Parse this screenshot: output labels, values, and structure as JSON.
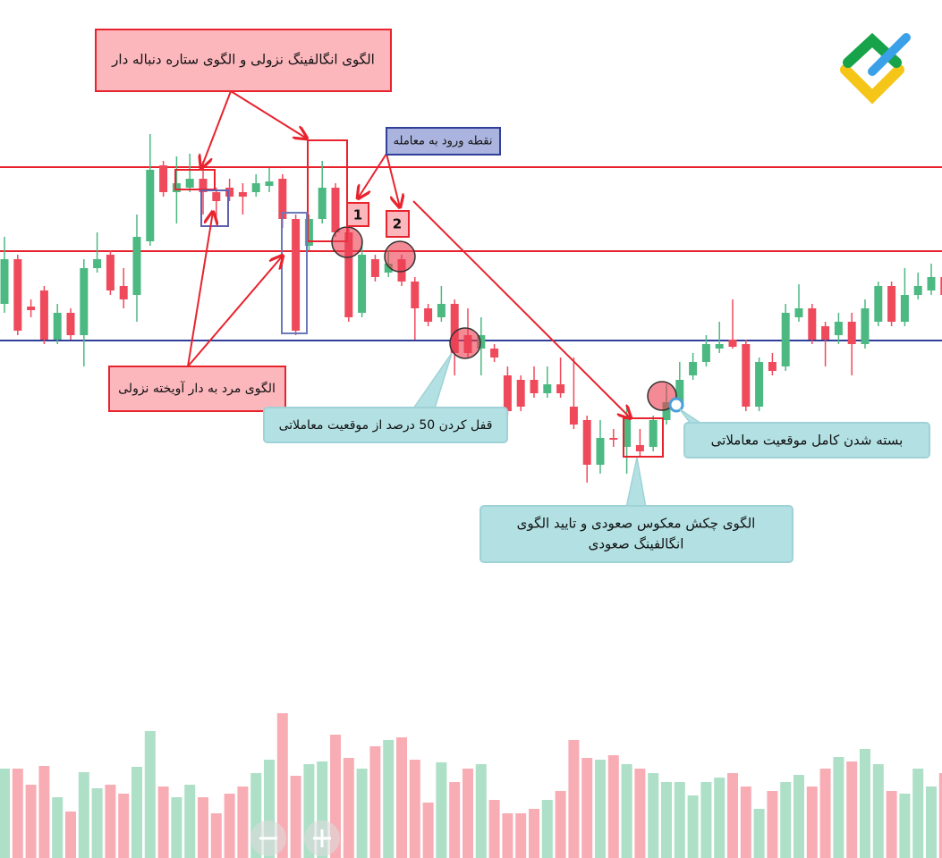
{
  "chart_data": {
    "type": "candlestick",
    "ylim": [
      0,
      410
    ],
    "up_color": "#4cb882",
    "down_color": "#ef4a5c",
    "candles": [
      [
        210,
        285,
        200,
        260
      ],
      [
        260,
        265,
        175,
        180
      ],
      [
        207,
        215,
        195,
        203
      ],
      [
        225,
        230,
        165,
        170
      ],
      [
        170,
        210,
        165,
        200
      ],
      [
        200,
        205,
        170,
        175
      ],
      [
        175,
        260,
        140,
        250
      ],
      [
        250,
        290,
        245,
        260
      ],
      [
        265,
        270,
        220,
        225
      ],
      [
        230,
        250,
        205,
        215
      ],
      [
        220,
        310,
        190,
        285
      ],
      [
        280,
        400,
        275,
        360
      ],
      [
        365,
        370,
        330,
        335
      ],
      [
        335,
        375,
        300,
        345
      ],
      [
        340,
        378,
        335,
        350
      ],
      [
        350,
        370,
        310,
        335
      ],
      [
        335,
        340,
        305,
        325
      ],
      [
        340,
        350,
        325,
        330
      ],
      [
        335,
        345,
        310,
        330
      ],
      [
        335,
        355,
        330,
        345
      ],
      [
        342,
        362,
        335,
        347
      ],
      [
        350,
        355,
        295,
        305
      ],
      [
        305,
        310,
        175,
        180
      ],
      [
        275,
        310,
        270,
        305
      ],
      [
        305,
        370,
        300,
        340
      ],
      [
        340,
        345,
        285,
        290
      ],
      [
        290,
        310,
        190,
        195
      ],
      [
        200,
        280,
        195,
        265
      ],
      [
        260,
        265,
        235,
        240
      ],
      [
        245,
        270,
        240,
        255
      ],
      [
        260,
        265,
        230,
        235
      ],
      [
        235,
        240,
        170,
        205
      ],
      [
        205,
        210,
        185,
        190
      ],
      [
        195,
        230,
        190,
        210
      ],
      [
        210,
        215,
        130,
        155
      ],
      [
        175,
        205,
        150,
        155
      ],
      [
        160,
        195,
        130,
        175
      ],
      [
        160,
        165,
        145,
        150
      ],
      [
        130,
        140,
        85,
        90
      ],
      [
        125,
        130,
        90,
        95
      ],
      [
        125,
        140,
        105,
        110
      ],
      [
        110,
        140,
        105,
        120
      ],
      [
        120,
        150,
        105,
        110
      ],
      [
        95,
        150,
        70,
        75
      ],
      [
        80,
        85,
        10,
        30
      ],
      [
        30,
        80,
        20,
        60
      ],
      [
        60,
        70,
        50,
        58
      ],
      [
        50,
        95,
        20,
        85
      ],
      [
        52,
        70,
        40,
        45
      ],
      [
        50,
        85,
        45,
        80
      ],
      [
        80,
        120,
        75,
        100
      ],
      [
        95,
        145,
        90,
        125
      ],
      [
        130,
        155,
        125,
        145
      ],
      [
        145,
        175,
        140,
        165
      ],
      [
        160,
        190,
        155,
        165
      ],
      [
        170,
        215,
        160,
        162
      ],
      [
        165,
        170,
        90,
        95
      ],
      [
        95,
        150,
        90,
        145
      ],
      [
        145,
        155,
        130,
        135
      ],
      [
        140,
        210,
        135,
        200
      ],
      [
        195,
        232,
        190,
        205
      ],
      [
        205,
        210,
        165,
        170
      ],
      [
        185,
        190,
        140,
        170
      ],
      [
        175,
        200,
        165,
        190
      ],
      [
        190,
        200,
        130,
        165
      ],
      [
        165,
        215,
        160,
        205
      ],
      [
        190,
        235,
        185,
        230
      ],
      [
        230,
        235,
        185,
        190
      ],
      [
        190,
        250,
        185,
        220
      ],
      [
        220,
        245,
        215,
        230
      ],
      [
        225,
        255,
        220,
        240
      ],
      [
        240,
        255,
        195,
        220
      ]
    ],
    "hlines": [
      {
        "value": 363,
        "color": "#e8232e"
      },
      {
        "value": 269,
        "color": "#e8232e"
      },
      {
        "value": 169,
        "color": "#2f3f9a"
      }
    ],
    "volume": [
      100,
      100,
      82,
      103,
      68,
      52,
      96,
      78,
      82,
      72,
      102,
      142,
      80,
      68,
      82,
      68,
      50,
      72,
      80,
      95,
      110,
      162,
      92,
      105,
      108,
      138,
      112,
      100,
      125,
      132,
      135,
      110,
      62,
      107,
      85,
      100,
      105,
      65,
      50,
      50,
      55,
      65,
      75,
      132,
      112,
      110,
      115,
      105,
      100,
      95,
      85,
      85,
      70,
      85,
      90,
      95,
      80,
      55,
      75,
      85,
      93,
      80,
      100,
      113,
      108,
      122,
      105,
      75,
      72,
      100,
      80,
      95
    ],
    "volume_ylim": [
      0,
      170
    ],
    "annotations": {
      "top": "الگوی انگالفینگ نزولی و الگوی ستاره دنباله دار",
      "entry": "نقطه ورود به معامله",
      "entry_1": "1",
      "entry_2": "2",
      "hanging_man": "الگوی مرد به دار آویخته نزولی",
      "lock": "قفل کردن 50 درصد از موقعیت معاملاتی",
      "close": "بسته شدن کامل موقعیت معاملاتی",
      "hammer": [
        "الگوی چکش معکوس صعودی و تایید الگوی",
        "انگالفینگ صعودی"
      ]
    }
  }
}
